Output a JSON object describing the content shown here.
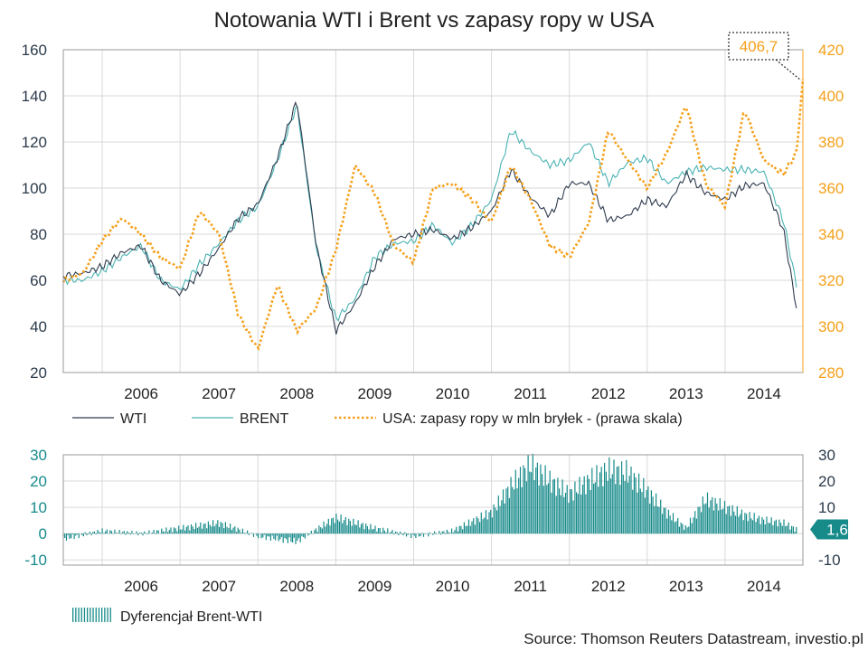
{
  "title": "Notowania WTI i Brent vs zapasy ropy w USA",
  "source": "Source: Thomson Reuters Datastream, investio.pl",
  "colors": {
    "wti": "#2e3b4e",
    "brent": "#4ab2b2",
    "stocks": "#f5a01a",
    "spread": "#178a8a",
    "text": "#222222"
  },
  "chart_data": [
    {
      "type": "line",
      "title": "Notowania WTI i Brent vs zapasy ropy w USA",
      "x_range": [
        "2005-07",
        "2015-01"
      ],
      "years": [
        "2006",
        "2007",
        "2008",
        "2009",
        "2010",
        "2011",
        "2012",
        "2013",
        "2014"
      ],
      "y_left": {
        "ticks": [
          "20",
          "40",
          "60",
          "80",
          "100",
          "120",
          "140",
          "160"
        ],
        "range": [
          20,
          160
        ]
      },
      "y_right": {
        "ticks": [
          "280",
          "300",
          "320",
          "340",
          "360",
          "380",
          "400",
          "420"
        ],
        "range": [
          280,
          420
        ]
      },
      "grid": true,
      "legend_position": "bottom",
      "callout": {
        "label": "406,7",
        "value": 406.7
      },
      "series": [
        {
          "name": "WTI",
          "axis": "left",
          "x": [
            "2005-07",
            "2005-10",
            "2006-01",
            "2006-04",
            "2006-07",
            "2006-10",
            "2007-01",
            "2007-04",
            "2007-07",
            "2007-10",
            "2008-01",
            "2008-04",
            "2008-07",
            "2008-10",
            "2009-01",
            "2009-04",
            "2009-07",
            "2009-10",
            "2010-01",
            "2010-04",
            "2010-07",
            "2010-10",
            "2011-01",
            "2011-04",
            "2011-07",
            "2011-10",
            "2012-01",
            "2012-04",
            "2012-07",
            "2012-10",
            "2013-01",
            "2013-04",
            "2013-07",
            "2013-10",
            "2014-01",
            "2014-04",
            "2014-07",
            "2014-10",
            "2014-12"
          ],
          "values": [
            62,
            63,
            66,
            72,
            75,
            60,
            54,
            63,
            74,
            87,
            93,
            113,
            138,
            75,
            38,
            50,
            66,
            78,
            80,
            82,
            78,
            83,
            90,
            108,
            96,
            88,
            102,
            102,
            86,
            88,
            95,
            92,
            106,
            98,
            95,
            101,
            102,
            82,
            48
          ]
        },
        {
          "name": "BRENT",
          "axis": "left",
          "x": [
            "2005-07",
            "2005-10",
            "2006-01",
            "2006-04",
            "2006-07",
            "2006-10",
            "2007-01",
            "2007-04",
            "2007-07",
            "2007-10",
            "2008-01",
            "2008-04",
            "2008-07",
            "2008-10",
            "2009-01",
            "2009-04",
            "2009-07",
            "2009-10",
            "2010-01",
            "2010-04",
            "2010-07",
            "2010-10",
            "2011-01",
            "2011-04",
            "2011-07",
            "2011-10",
            "2012-01",
            "2012-04",
            "2012-07",
            "2012-10",
            "2013-01",
            "2013-04",
            "2013-07",
            "2013-10",
            "2014-01",
            "2014-04",
            "2014-07",
            "2014-10",
            "2014-12"
          ],
          "values": [
            60,
            60,
            64,
            70,
            75,
            60,
            56,
            67,
            76,
            86,
            92,
            112,
            136,
            74,
            43,
            52,
            70,
            76,
            77,
            84,
            76,
            84,
            95,
            125,
            116,
            110,
            112,
            120,
            102,
            111,
            113,
            102,
            107,
            109,
            108,
            108,
            107,
            86,
            58
          ]
        },
        {
          "name": "USA: zapasy ropy w mln bryłek - (prawa skala)",
          "axis": "right",
          "x": [
            "2005-07",
            "2005-10",
            "2006-01",
            "2006-04",
            "2006-07",
            "2006-10",
            "2007-01",
            "2007-04",
            "2007-07",
            "2007-10",
            "2008-01",
            "2008-04",
            "2008-07",
            "2008-10",
            "2009-01",
            "2009-04",
            "2009-07",
            "2009-10",
            "2010-01",
            "2010-04",
            "2010-07",
            "2010-10",
            "2011-01",
            "2011-04",
            "2011-07",
            "2011-10",
            "2012-01",
            "2012-04",
            "2012-07",
            "2012-10",
            "2013-01",
            "2013-04",
            "2013-07",
            "2013-10",
            "2014-01",
            "2014-04",
            "2014-07",
            "2014-10",
            "2014-12",
            "2015-01"
          ],
          "values": [
            320,
            323,
            337,
            347,
            340,
            330,
            325,
            350,
            340,
            305,
            290,
            318,
            298,
            308,
            333,
            370,
            358,
            335,
            328,
            360,
            362,
            355,
            345,
            370,
            355,
            335,
            330,
            345,
            385,
            372,
            360,
            375,
            396,
            362,
            352,
            394,
            372,
            366,
            375,
            406.7
          ]
        }
      ]
    },
    {
      "type": "bar",
      "x_range": [
        "2005-07",
        "2015-01"
      ],
      "years": [
        "2006",
        "2007",
        "2008",
        "2009",
        "2010",
        "2011",
        "2012",
        "2013",
        "2014"
      ],
      "y_left": {
        "ticks": [
          "30",
          "20",
          "10",
          "0",
          "-10"
        ],
        "range": [
          -12,
          30
        ]
      },
      "y_right": {
        "ticks": [
          "30",
          "20",
          "10",
          "0",
          "-10"
        ],
        "range": [
          -12,
          30
        ]
      },
      "grid": true,
      "legend_position": "bottom-left",
      "callout": {
        "label": "1,6",
        "value": 1.6
      },
      "series": [
        {
          "name": "Dyferencjał Brent-WTI",
          "x": [
            "2005-07",
            "2006-01",
            "2006-07",
            "2007-01",
            "2007-07",
            "2008-01",
            "2008-07",
            "2009-01",
            "2009-07",
            "2010-01",
            "2010-07",
            "2011-01",
            "2011-04",
            "2011-07",
            "2011-10",
            "2012-01",
            "2012-04",
            "2012-07",
            "2012-10",
            "2013-01",
            "2013-04",
            "2013-07",
            "2013-10",
            "2014-01",
            "2014-04",
            "2014-07",
            "2014-10",
            "2014-12"
          ],
          "values": [
            -2,
            1,
            0,
            2,
            4,
            -1,
            -3,
            6,
            2,
            -1,
            1,
            8,
            18,
            26,
            20,
            15,
            20,
            24,
            23,
            16,
            8,
            2,
            13,
            10,
            7,
            5,
            4,
            1.6
          ]
        }
      ]
    }
  ]
}
